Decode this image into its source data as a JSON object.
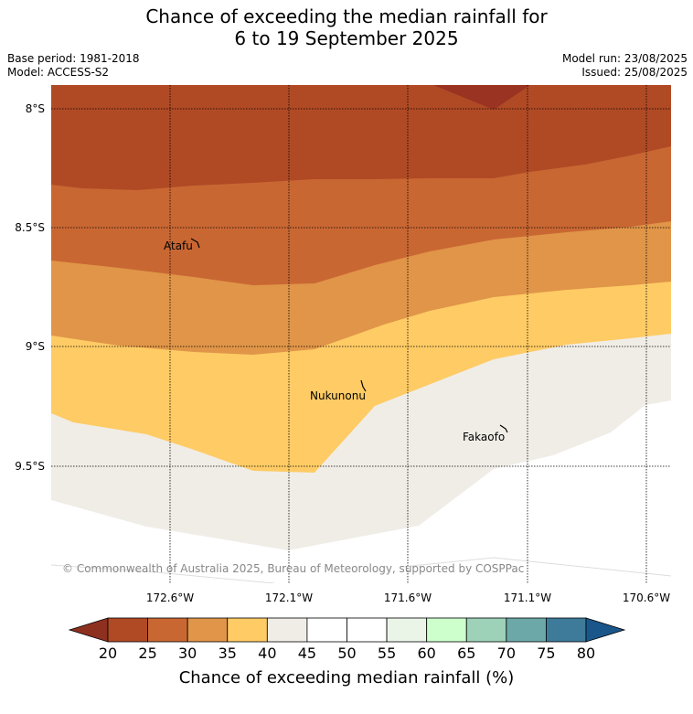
{
  "title": {
    "line1": "Chance of exceeding the median rainfall for",
    "line2": "6 to 19 September 2025"
  },
  "meta": {
    "base_period": "Base period: 1981-2018",
    "model": "Model: ACCESS-S2",
    "model_run": "Model run: 23/08/2025",
    "issued": "Issued: 25/08/2025"
  },
  "map": {
    "lat_labels": [
      "8°S",
      "8.5°S",
      "9°S",
      "9.5°S"
    ],
    "lon_labels": [
      "172.6°W",
      "172.1°W",
      "171.6°W",
      "171.1°W",
      "170.6°W"
    ],
    "places": [
      "Atafu",
      "Nukunonu",
      "Fakaofo"
    ],
    "copyright": "© Commonwealth of Australia 2025, Bureau of Meteorology, supported by COSPPac"
  },
  "colorbar": {
    "ticks": [
      "20",
      "25",
      "30",
      "35",
      "40",
      "45",
      "50",
      "55",
      "60",
      "65",
      "70",
      "75",
      "80"
    ],
    "colors": [
      "#b04a25",
      "#c96733",
      "#e09548",
      "#fecb65",
      "#f0ede7",
      "#ffffff",
      "#ffffff",
      "#eaf5e8",
      "#ccffcc",
      "#9dd1b8",
      "#6ca8a8",
      "#3e7a99"
    ],
    "low_color": "#8e3020",
    "high_color": "#1a568a",
    "label": "Chance of exceeding median rainfall (%)"
  }
}
